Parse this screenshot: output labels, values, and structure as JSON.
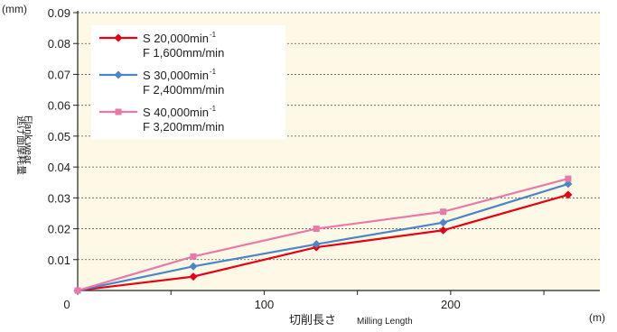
{
  "chart_data": {
    "type": "line",
    "y_unit": "(mm)",
    "x_unit": "(m)",
    "xlabel_main": "切削長さ",
    "xlabel_sub": "Milling Length",
    "ylabel_lines": [
      "逃げ面摩耗量",
      "Flank wear"
    ],
    "xlim": [
      0,
      280
    ],
    "ylim": [
      0,
      0.09
    ],
    "x_ticks": [
      0,
      100,
      200
    ],
    "y_ticks": [
      0.01,
      0.02,
      0.03,
      0.04,
      0.05,
      0.06,
      0.07,
      0.08,
      0.09
    ],
    "y_tick_labels": [
      "0.01",
      "0.02",
      "0.03",
      "0.04",
      "0.05",
      "0.06",
      "0.07",
      "0.08",
      "0.09"
    ],
    "x_tick_labels": [
      "0",
      "100",
      "200"
    ],
    "grid": "horizontal-dashed",
    "background": "#fdf9e6",
    "legend_position": "top-left",
    "series": [
      {
        "name_line1": "S 20,000min",
        "name_sup": "-1",
        "name_line2": "F 1,600mm/min",
        "color": "#e60012",
        "marker": "diamond",
        "x": [
          0,
          62,
          128,
          196,
          263
        ],
        "y": [
          0.0,
          0.0045,
          0.014,
          0.0195,
          0.031
        ]
      },
      {
        "name_line1": "S 30,000min",
        "name_sup": "-1",
        "name_line2": "F 2,400mm/min",
        "color": "#4a86c8",
        "marker": "diamond",
        "x": [
          0,
          62,
          128,
          196,
          263
        ],
        "y": [
          0.0,
          0.0078,
          0.015,
          0.022,
          0.0345
        ]
      },
      {
        "name_line1": "S 40,000min",
        "name_sup": "-1",
        "name_line2": "F 3,200mm/min",
        "color": "#e879a8",
        "marker": "square",
        "x": [
          0,
          62,
          128,
          196,
          263
        ],
        "y": [
          0.0,
          0.011,
          0.02,
          0.0255,
          0.0362
        ]
      }
    ]
  }
}
